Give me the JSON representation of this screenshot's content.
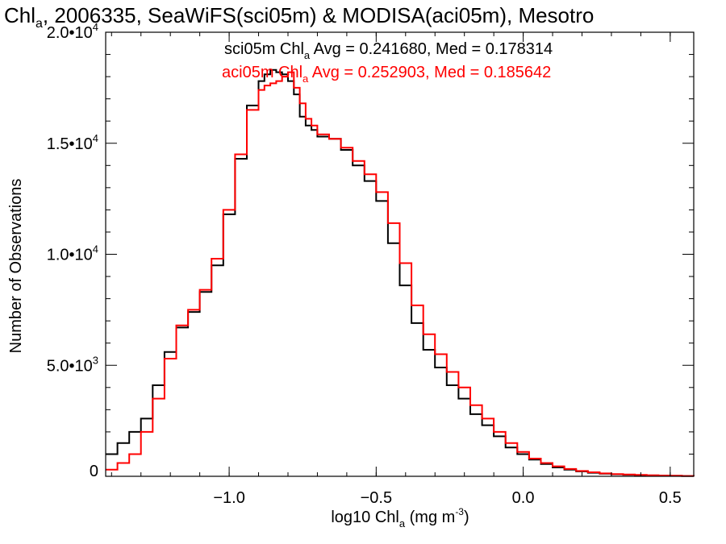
{
  "chart_data": {
    "type": "line",
    "title": {
      "pre": "Chl",
      "sub": "a",
      "post": ", 2006335, SeaWiFS(sci05m) & MODISA(aci05m), Mesotro"
    },
    "xlabel": {
      "pre": "log10 Chl",
      "sub": "a",
      "mid": " (mg m",
      "sup": "-3",
      "post": ")"
    },
    "ylabel": "Number of Observations",
    "xlim": [
      -1.42,
      0.58
    ],
    "ylim": [
      0,
      20000
    ],
    "xticks": [
      {
        "value": -1.0,
        "label": "−1.0"
      },
      {
        "value": -0.5,
        "label": "−0.5"
      },
      {
        "value": 0.0,
        "label": "0.0"
      },
      {
        "value": 0.5,
        "label": "0.5"
      }
    ],
    "yticks": [
      {
        "value": 0,
        "base": "0",
        "exp": ""
      },
      {
        "value": 5000,
        "base": "5.0•10",
        "exp": "3"
      },
      {
        "value": 10000,
        "base": "1.0•10",
        "exp": "4"
      },
      {
        "value": 15000,
        "base": "1.5•10",
        "exp": "4"
      },
      {
        "value": 20000,
        "base": "2.0•10",
        "exp": "4"
      }
    ],
    "annotations": [
      {
        "pre": "sci05m Chl",
        "sub": "a",
        "post": " Avg = 0.241680, Med = 0.178314",
        "color": "#000000"
      },
      {
        "pre": "aci05m Chl",
        "sub": "a",
        "post": " Avg = 0.252903, Med = 0.185642",
        "color": "#ff0000"
      }
    ],
    "series": [
      {
        "color": "#000000",
        "x": [
          -1.42,
          -1.38,
          -1.34,
          -1.3,
          -1.26,
          -1.22,
          -1.18,
          -1.14,
          -1.1,
          -1.06,
          -1.02,
          -0.98,
          -0.94,
          -0.9,
          -0.88,
          -0.86,
          -0.84,
          -0.82,
          -0.8,
          -0.78,
          -0.76,
          -0.74,
          -0.72,
          -0.7,
          -0.66,
          -0.62,
          -0.58,
          -0.54,
          -0.5,
          -0.46,
          -0.42,
          -0.38,
          -0.34,
          -0.3,
          -0.26,
          -0.22,
          -0.18,
          -0.14,
          -0.1,
          -0.06,
          -0.02,
          0.02,
          0.06,
          0.1,
          0.14,
          0.18,
          0.22,
          0.26,
          0.3,
          0.34,
          0.38,
          0.42,
          0.46,
          0.5,
          0.54,
          0.58
        ],
        "y": [
          1000,
          1500,
          2000,
          2600,
          4100,
          5600,
          6700,
          7400,
          8300,
          9500,
          11800,
          14300,
          16700,
          17800,
          18100,
          18300,
          18200,
          18100,
          17800,
          17200,
          16200,
          15800,
          15600,
          15300,
          15200,
          14700,
          14000,
          13300,
          12400,
          10500,
          8600,
          6900,
          5700,
          4900,
          4100,
          3500,
          2800,
          2300,
          1800,
          1300,
          1000,
          750,
          550,
          400,
          300,
          220,
          160,
          120,
          90,
          70,
          50,
          40,
          30,
          20,
          15,
          10
        ]
      },
      {
        "color": "#ff0000",
        "x": [
          -1.42,
          -1.38,
          -1.34,
          -1.3,
          -1.26,
          -1.22,
          -1.18,
          -1.14,
          -1.1,
          -1.06,
          -1.02,
          -0.98,
          -0.94,
          -0.9,
          -0.88,
          -0.86,
          -0.84,
          -0.82,
          -0.8,
          -0.78,
          -0.76,
          -0.74,
          -0.72,
          -0.7,
          -0.66,
          -0.62,
          -0.58,
          -0.54,
          -0.5,
          -0.46,
          -0.42,
          -0.38,
          -0.34,
          -0.3,
          -0.26,
          -0.22,
          -0.18,
          -0.14,
          -0.1,
          -0.06,
          -0.02,
          0.02,
          0.06,
          0.1,
          0.14,
          0.18,
          0.22,
          0.26,
          0.3,
          0.34,
          0.38,
          0.42,
          0.46,
          0.5,
          0.54,
          0.58
        ],
        "y": [
          300,
          600,
          1000,
          2000,
          3500,
          5300,
          6800,
          7500,
          8400,
          9800,
          12000,
          14500,
          16500,
          17400,
          17600,
          17700,
          17800,
          18000,
          18200,
          17500,
          16800,
          16100,
          15800,
          15400,
          15200,
          14800,
          14200,
          13600,
          12800,
          11400,
          9600,
          7700,
          6400,
          5500,
          4700,
          4000,
          3200,
          2600,
          2000,
          1500,
          1100,
          800,
          600,
          450,
          330,
          240,
          180,
          130,
          100,
          80,
          60,
          45,
          35,
          25,
          15,
          10
        ]
      }
    ]
  }
}
